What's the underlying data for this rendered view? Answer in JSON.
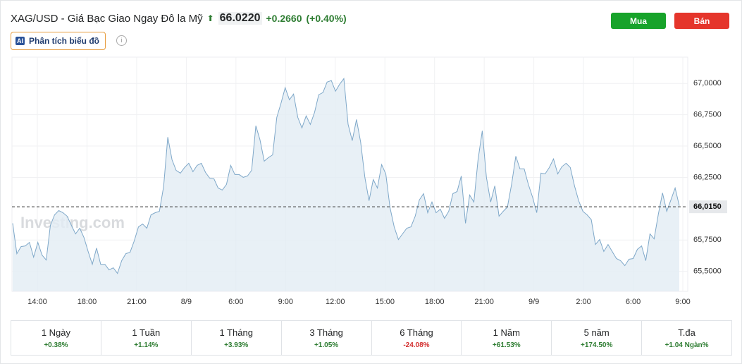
{
  "header": {
    "title": "XAG/USD - Giá Bạc Giao Ngay Đô la Mỹ",
    "price": "66.0220",
    "change": "+0.2660",
    "change_pct": "(+0.40%)",
    "buy": "Mua",
    "sell": "Bán",
    "analysis_badge": "AI",
    "analysis": "Phân tích biểu đồ"
  },
  "chart_data": {
    "type": "area",
    "watermark": "Investing.com",
    "color": "#7fa8c9",
    "values": [
      65.883,
      65.641,
      65.697,
      65.703,
      65.731,
      65.613,
      65.731,
      65.63,
      65.59,
      65.867,
      65.951,
      65.985,
      65.968,
      65.94,
      65.867,
      65.799,
      65.844,
      65.771,
      65.658,
      65.556,
      65.686,
      65.556,
      65.556,
      65.511,
      65.528,
      65.483,
      65.585,
      65.641,
      65.652,
      65.743,
      65.855,
      65.878,
      65.844,
      65.951,
      65.968,
      65.979,
      66.177,
      66.571,
      66.391,
      66.306,
      66.284,
      66.329,
      66.363,
      66.295,
      66.346,
      66.363,
      66.289,
      66.244,
      66.239,
      66.165,
      66.149,
      66.194,
      66.346,
      66.273,
      66.273,
      66.25,
      66.261,
      66.306,
      66.662,
      66.549,
      66.38,
      66.408,
      66.43,
      66.729,
      66.842,
      66.966,
      66.87,
      66.915,
      66.729,
      66.645,
      66.741,
      66.673,
      66.769,
      66.91,
      66.927,
      67.011,
      67.023,
      66.938,
      66.994,
      67.039,
      66.673,
      66.543,
      66.712,
      66.532,
      66.25,
      66.064,
      66.233,
      66.165,
      66.352,
      66.278,
      66.008,
      65.855,
      65.754,
      65.799,
      65.844,
      65.855,
      65.94,
      66.07,
      66.12,
      65.968,
      66.053,
      65.968,
      65.996,
      65.923,
      65.979,
      66.12,
      66.137,
      66.261,
      65.883,
      66.109,
      66.053,
      66.391,
      66.622,
      66.25,
      66.053,
      66.182,
      65.94,
      65.979,
      66.013,
      66.194,
      66.419,
      66.318,
      66.318,
      66.194,
      66.092,
      65.968,
      66.284,
      66.278,
      66.329,
      66.397,
      66.278,
      66.335,
      66.363,
      66.329,
      66.182,
      66.064,
      65.979,
      65.951,
      65.912,
      65.714,
      65.754,
      65.658,
      65.714,
      65.658,
      65.602,
      65.585,
      65.545,
      65.596,
      65.602,
      65.675,
      65.703,
      65.585,
      65.799,
      65.759,
      65.957,
      66.126,
      65.979,
      66.07,
      66.165,
      66.024
    ],
    "ylim": [
      65.34,
      67.21
    ],
    "yticks": [
      {
        "value": 65.5,
        "label": "65,5000"
      },
      {
        "value": 65.75,
        "label": "65,7500"
      },
      {
        "value": 66.25,
        "label": "66,2500"
      },
      {
        "value": 66.5,
        "label": "66,5000"
      },
      {
        "value": 66.75,
        "label": "66,7500"
      },
      {
        "value": 67,
        "label": "67,0000"
      }
    ],
    "reference_line": {
      "value": 66.015,
      "label": "66,0150"
    },
    "xticks": [
      "14:00",
      "18:00",
      "21:00",
      "8/9",
      "6:00",
      "9:00",
      "12:00",
      "15:00",
      "18:00",
      "21:00",
      "9/9",
      "2:00",
      "6:00",
      "9:00"
    ],
    "grid": true
  },
  "periods": [
    {
      "label": "1 Ngày",
      "change": "+0.38%"
    },
    {
      "label": "1 Tuần",
      "change": "+1.14%"
    },
    {
      "label": "1 Tháng",
      "change": "+3.93%"
    },
    {
      "label": "3 Tháng",
      "change": "+1.05%"
    },
    {
      "label": "6 Tháng",
      "change": "-24.08%"
    },
    {
      "label": "1 Năm",
      "change": "+61.53%"
    },
    {
      "label": "5 năm",
      "change": "+174.50%"
    },
    {
      "label": "T.đa",
      "change": "+1.04 Ngàn%"
    }
  ]
}
